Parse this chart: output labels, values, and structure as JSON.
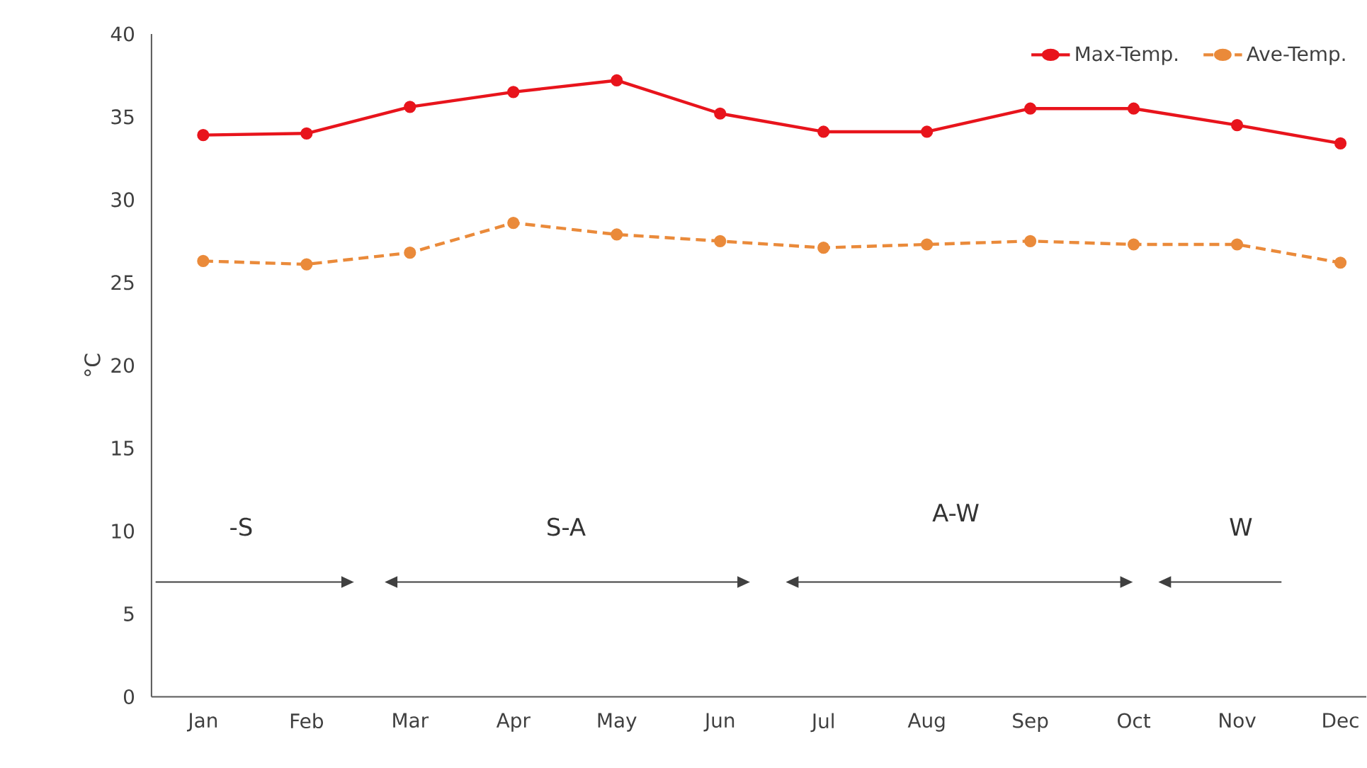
{
  "chart_data": {
    "type": "line",
    "ylabel": "°C",
    "categories": [
      "Jan",
      "Feb",
      "Mar",
      "Apr",
      "May",
      "Jun",
      "Jul",
      "Aug",
      "Sep",
      "Oct",
      "Nov",
      "Dec"
    ],
    "series": [
      {
        "name": "Max-Temp.",
        "color": "#e8141c",
        "line_style": "solid",
        "values": [
          33.9,
          34.0,
          35.6,
          36.5,
          37.2,
          35.2,
          34.1,
          34.1,
          35.5,
          35.5,
          34.5,
          33.4
        ]
      },
      {
        "name": "Ave-Temp.",
        "color": "#ea8a3a",
        "line_style": "dashed",
        "values": [
          26.3,
          26.1,
          26.8,
          28.6,
          27.9,
          27.5,
          27.1,
          27.3,
          27.5,
          27.3,
          27.3,
          26.2
        ]
      }
    ],
    "ylim": [
      0,
      40
    ],
    "yticks": [
      0,
      5,
      10,
      15,
      20,
      25,
      30,
      35,
      40
    ],
    "marker": "circle",
    "legend": "top right",
    "grid": false,
    "annotations": [
      "-S",
      "S-A",
      "A-W",
      "W"
    ]
  }
}
